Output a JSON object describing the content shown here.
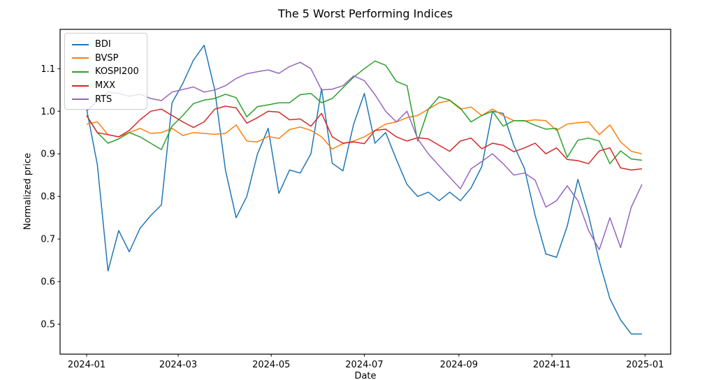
{
  "chart_data": {
    "type": "line",
    "title": "The 5 Worst Performing Indices",
    "xlabel": "Date",
    "ylabel": "Normalized price",
    "legend_position": "upper left",
    "grid": false,
    "x_tick_labels": [
      "2024-01",
      "2024-03",
      "2024-05",
      "2024-07",
      "2024-09",
      "2024-11",
      "2025-01"
    ],
    "x_tick_days": [
      0,
      60,
      121,
      182,
      244,
      305,
      366
    ],
    "y_tick_labels": [
      "0.5",
      "0.6",
      "0.7",
      "0.8",
      "0.9",
      "1.0",
      "1.1"
    ],
    "y_ticks": [
      0.5,
      0.6,
      0.7,
      0.8,
      0.9,
      1.0,
      1.1
    ],
    "ylim": [
      0.43,
      1.19
    ],
    "x_unit": "days since 2024-01-01",
    "sample_interval_days": 7,
    "first_sample_day": 0,
    "series": [
      {
        "name": "BDI",
        "color": "#1f77b4",
        "values": [
          1.005,
          0.875,
          0.625,
          0.72,
          0.67,
          0.725,
          0.755,
          0.78,
          1.02,
          1.065,
          1.12,
          1.155,
          1.05,
          0.862,
          0.75,
          0.8,
          0.9,
          0.96,
          0.807,
          0.862,
          0.855,
          0.9,
          1.053,
          0.878,
          0.86,
          0.97,
          1.042,
          0.925,
          0.95,
          0.887,
          0.828,
          0.8,
          0.81,
          0.79,
          0.81,
          0.79,
          0.82,
          0.87,
          1.0,
          0.995,
          0.92,
          0.865,
          0.755,
          0.665,
          0.657,
          0.73,
          0.84,
          0.755,
          0.648,
          0.56,
          0.51,
          0.477,
          0.477
        ]
      },
      {
        "name": "BVSP",
        "color": "#ff7f0e",
        "values": [
          0.97,
          0.975,
          0.945,
          0.94,
          0.95,
          0.96,
          0.948,
          0.95,
          0.96,
          0.943,
          0.95,
          0.948,
          0.946,
          0.948,
          0.968,
          0.93,
          0.928,
          0.941,
          0.936,
          0.957,
          0.963,
          0.955,
          0.94,
          0.911,
          0.924,
          0.93,
          0.94,
          0.955,
          0.97,
          0.975,
          0.985,
          0.99,
          1.005,
          1.02,
          1.025,
          1.005,
          1.01,
          0.99,
          1.005,
          0.99,
          0.978,
          0.977,
          0.98,
          0.978,
          0.955,
          0.97,
          0.973,
          0.975,
          0.945,
          0.968,
          0.928,
          0.906,
          0.9
        ]
      },
      {
        "name": "KOSPI200",
        "color": "#2ca02c",
        "values": [
          0.99,
          0.95,
          0.925,
          0.935,
          0.95,
          0.94,
          0.925,
          0.91,
          0.965,
          0.99,
          1.018,
          1.026,
          1.03,
          1.04,
          1.032,
          0.987,
          1.011,
          1.015,
          1.02,
          1.02,
          1.039,
          1.042,
          1.02,
          1.03,
          1.055,
          1.08,
          1.1,
          1.118,
          1.108,
          1.07,
          1.06,
          0.93,
          1.005,
          1.034,
          1.026,
          1.007,
          0.975,
          0.99,
          1.0,
          0.965,
          0.978,
          0.978,
          0.967,
          0.958,
          0.96,
          0.892,
          0.932,
          0.937,
          0.93,
          0.877,
          0.907,
          0.888,
          0.885
        ]
      },
      {
        "name": "MXX",
        "color": "#d62728",
        "values": [
          0.99,
          0.95,
          0.945,
          0.94,
          0.955,
          0.98,
          1.0,
          1.005,
          0.99,
          0.975,
          0.962,
          0.975,
          1.005,
          1.012,
          1.008,
          0.972,
          0.985,
          1.0,
          0.998,
          0.98,
          0.982,
          0.965,
          0.995,
          0.94,
          0.925,
          0.928,
          0.924,
          0.955,
          0.958,
          0.94,
          0.93,
          0.938,
          0.935,
          0.92,
          0.906,
          0.93,
          0.937,
          0.912,
          0.925,
          0.92,
          0.905,
          0.914,
          0.925,
          0.9,
          0.914,
          0.887,
          0.884,
          0.877,
          0.907,
          0.914,
          0.867,
          0.862,
          0.865
        ]
      },
      {
        "name": "RTS",
        "color": "#9467bd",
        "values": [
          1.0,
          1.025,
          1.045,
          1.042,
          1.035,
          1.04,
          1.03,
          1.025,
          1.045,
          1.051,
          1.057,
          1.045,
          1.05,
          1.06,
          1.077,
          1.088,
          1.093,
          1.097,
          1.089,
          1.105,
          1.115,
          1.1,
          1.05,
          1.052,
          1.06,
          1.083,
          1.072,
          1.039,
          1.0,
          0.975,
          1.0,
          0.935,
          0.9,
          0.872,
          0.845,
          0.818,
          0.865,
          0.882,
          0.9,
          0.877,
          0.85,
          0.855,
          0.838,
          0.775,
          0.79,
          0.825,
          0.79,
          0.72,
          0.675,
          0.75,
          0.68,
          0.775,
          0.828
        ]
      }
    ]
  }
}
